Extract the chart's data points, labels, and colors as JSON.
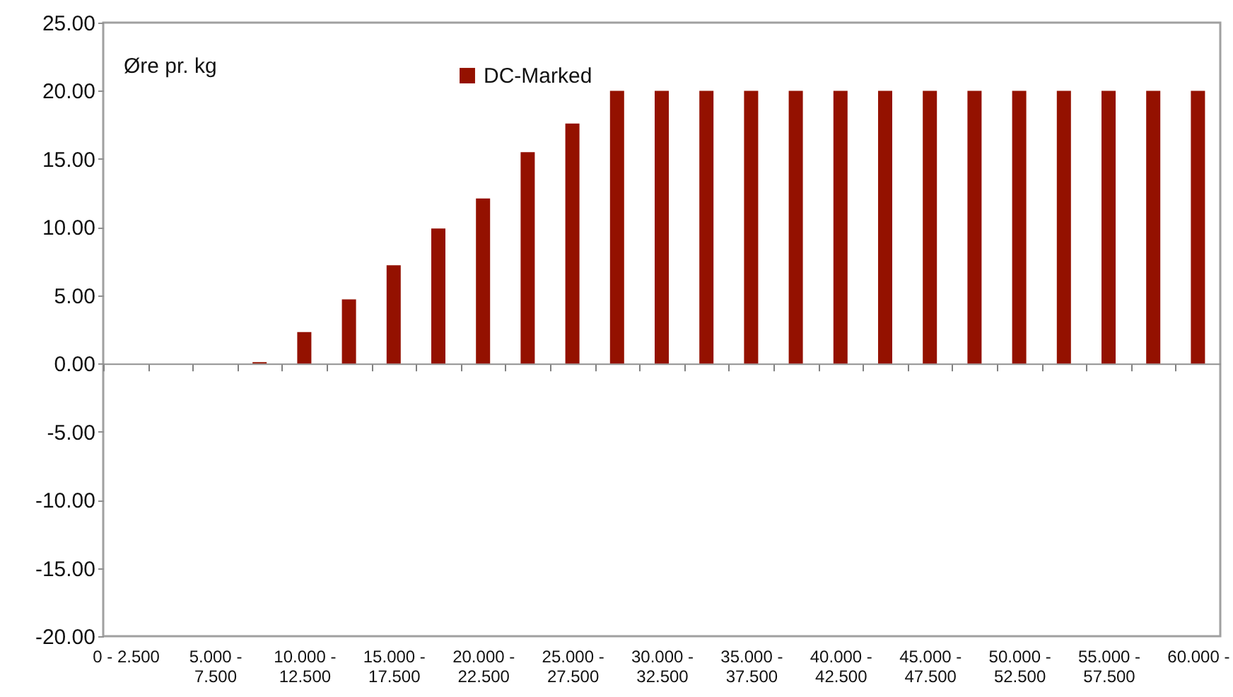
{
  "chart_data": {
    "type": "bar",
    "ylabel": "Øre pr. kg",
    "categories": [
      "0 - 2.500",
      null,
      "5.000 - 7.500",
      null,
      "10.000 - 12.500",
      null,
      "15.000 - 17.500",
      null,
      "20.000 - 22.500",
      null,
      "25.000 - 27.500",
      null,
      "30.000 - 32.500",
      null,
      "35.000 - 37.500",
      null,
      "40.000 - 42.500",
      null,
      "45.000 - 47.500",
      null,
      "50.000 - 52.500",
      null,
      "55.000 - 57.500",
      null,
      "60.000 -"
    ],
    "series": [
      {
        "name": "DC-Marked",
        "color": "#941100",
        "values": [
          0,
          0,
          0,
          0.1,
          2.3,
          4.7,
          7.2,
          9.9,
          12.1,
          15.5,
          17.6,
          20,
          20,
          20,
          20,
          20,
          20,
          20,
          20,
          20,
          20,
          20,
          20,
          20,
          20
        ]
      }
    ],
    "ylim": [
      -20,
      25
    ],
    "yticks": [
      {
        "value": -20,
        "label": "-20.00"
      },
      {
        "value": -15,
        "label": "-15.00"
      },
      {
        "value": -10,
        "label": "-10.00"
      },
      {
        "value": -5,
        "label": "-5.00"
      },
      {
        "value": 0,
        "label": "0.00"
      },
      {
        "value": 5,
        "label": "5.00"
      },
      {
        "value": 10,
        "label": "10.00"
      },
      {
        "value": 15,
        "label": "15.00"
      },
      {
        "value": 20,
        "label": "20.00"
      },
      {
        "value": 25,
        "label": "25.00"
      }
    ],
    "legend": "top"
  }
}
